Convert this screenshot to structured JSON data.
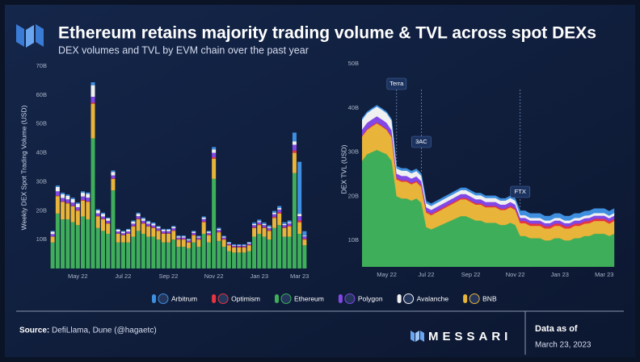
{
  "header": {
    "title": "Ethereum retains majority trading volume & TVL across spot DEXs",
    "subtitle": "DEX volumes and TVL by EVM chain over the past year"
  },
  "chart_data": [
    {
      "type": "stacked-bar",
      "ylabel": "Weekly DEX Spot Trading Volume (USD)",
      "categories": [
        null,
        null,
        null,
        null,
        null,
        "May 22",
        null,
        null,
        null,
        null,
        null,
        null,
        null,
        null,
        "Jul 22",
        null,
        null,
        null,
        null,
        null,
        null,
        null,
        null,
        "Sep 22",
        null,
        null,
        null,
        null,
        null,
        null,
        null,
        null,
        "Nov 22",
        null,
        null,
        null,
        null,
        null,
        null,
        null,
        null,
        "Jan 23",
        null,
        null,
        null,
        null,
        null,
        null,
        null,
        "Mar 23",
        null
      ],
      "ylim": [
        0,
        70
      ],
      "yticks": [
        {
          "value": 10,
          "label": "10B"
        },
        {
          "value": 20,
          "label": "20B"
        },
        {
          "value": 30,
          "label": "30B"
        },
        {
          "value": 40,
          "label": "40B"
        },
        {
          "value": 50,
          "label": "50B"
        },
        {
          "value": 60,
          "label": "60B"
        },
        {
          "value": 70,
          "label": "70B"
        }
      ],
      "grid": false,
      "series": [
        {
          "name": "Ethereum",
          "color": "#3fae5a",
          "values": [
            9,
            19,
            17,
            17,
            16,
            15,
            18,
            17,
            45,
            14,
            13,
            12,
            27,
            9,
            9,
            9,
            11,
            13,
            12,
            11,
            11,
            10,
            9,
            9,
            10,
            7.5,
            7.5,
            7,
            9,
            7.5,
            12,
            9,
            31,
            9.5,
            7.5,
            6,
            5.5,
            5.5,
            5.5,
            6,
            11,
            12,
            11,
            10,
            14,
            15,
            11,
            11,
            33,
            12,
            8
          ]
        },
        {
          "name": "BNB",
          "color": "#e8b43a",
          "values": [
            2,
            6,
            6,
            5.5,
            5.5,
            5,
            5.5,
            6,
            12,
            4,
            4,
            3.5,
            4,
            3,
            2.5,
            3,
            3.5,
            4,
            3.5,
            3.5,
            3,
            3,
            3,
            3,
            3,
            2.5,
            2.5,
            2,
            2.5,
            2.5,
            4,
            2.5,
            7,
            3,
            2.5,
            2,
            1.8,
            1.8,
            1.8,
            2,
            3,
            3,
            3,
            3,
            3.5,
            4,
            3,
            3.5,
            7,
            4,
            2
          ]
        },
        {
          "name": "Optimism",
          "color": "#e8343f",
          "values": [
            0.1,
            0.2,
            0.2,
            0.2,
            0.2,
            0.2,
            0.2,
            0.2,
            0.4,
            0.2,
            0.2,
            0.2,
            0.2,
            0.1,
            0.1,
            0.1,
            0.2,
            0.2,
            0.2,
            0.2,
            0.2,
            0.2,
            0.2,
            0.2,
            0.2,
            0.2,
            0.2,
            0.2,
            0.2,
            0.2,
            0.3,
            0.2,
            0.5,
            0.2,
            0.2,
            0.2,
            0.2,
            0.2,
            0.2,
            0.2,
            0.3,
            0.3,
            0.3,
            0.3,
            0.4,
            0.4,
            0.3,
            0.3,
            0.8,
            0.6,
            0.3
          ]
        },
        {
          "name": "Polygon",
          "color": "#8247e5",
          "values": [
            0.8,
            1.5,
            1.2,
            1.2,
            1.1,
            1,
            1.2,
            1.3,
            2,
            0.9,
            0.8,
            0.8,
            1,
            0.7,
            0.6,
            0.7,
            0.8,
            0.9,
            0.8,
            0.8,
            0.7,
            0.7,
            0.7,
            0.7,
            0.7,
            0.5,
            0.5,
            0.5,
            0.6,
            0.5,
            0.8,
            0.6,
            1.5,
            0.6,
            0.5,
            0.4,
            0.4,
            0.4,
            0.4,
            0.4,
            0.7,
            0.7,
            0.7,
            0.7,
            0.9,
            1,
            0.7,
            0.8,
            2,
            1.5,
            0.8
          ]
        },
        {
          "name": "Avalanche",
          "color": "#f0f0f0",
          "values": [
            0.8,
            1.5,
            1.3,
            1.2,
            1.2,
            1.2,
            1.3,
            1.3,
            4,
            1,
            0.9,
            0.8,
            1.2,
            0.6,
            0.5,
            0.6,
            0.7,
            0.8,
            0.7,
            0.6,
            0.6,
            0.5,
            0.5,
            0.5,
            0.5,
            0.4,
            0.4,
            0.3,
            0.4,
            0.3,
            0.5,
            0.4,
            1.2,
            0.4,
            0.3,
            0.3,
            0.2,
            0.2,
            0.2,
            0.3,
            0.4,
            0.4,
            0.4,
            0.4,
            0.5,
            0.5,
            0.4,
            0.4,
            1.2,
            0.8,
            0.3
          ]
        },
        {
          "name": "Arbitrum",
          "color": "#3f8fe0",
          "values": [
            0.3,
            0.5,
            0.5,
            0.5,
            0.5,
            0.4,
            0.5,
            0.5,
            1,
            0.4,
            0.4,
            0.3,
            0.5,
            0.3,
            0.3,
            0.3,
            0.4,
            0.4,
            0.4,
            0.4,
            0.4,
            0.3,
            0.3,
            0.3,
            0.3,
            0.3,
            0.3,
            0.3,
            0.3,
            0.3,
            0.4,
            0.3,
            0.8,
            0.4,
            0.3,
            0.3,
            0.3,
            0.3,
            0.3,
            0.3,
            0.5,
            0.5,
            0.5,
            0.5,
            0.6,
            0.7,
            0.6,
            0.6,
            3,
            18,
            1.5
          ]
        }
      ]
    },
    {
      "type": "stacked-area",
      "ylabel": "DEX  TVL (USD)",
      "categories": [
        null,
        null,
        null,
        null,
        null,
        "May 22",
        null,
        null,
        null,
        null,
        null,
        null,
        null,
        "Jul 22",
        null,
        null,
        null,
        null,
        null,
        null,
        null,
        null,
        "Sep 22",
        null,
        null,
        null,
        null,
        null,
        null,
        null,
        null,
        "Nov 22",
        null,
        null,
        null,
        null,
        null,
        null,
        null,
        null,
        "Jan 23",
        null,
        null,
        null,
        null,
        null,
        null,
        null,
        null,
        "Mar 23",
        null,
        null
      ],
      "ylim": [
        4,
        50
      ],
      "yticks": [
        {
          "value": 10,
          "label": "10B"
        },
        {
          "value": 20,
          "label": "20B"
        },
        {
          "value": 30,
          "label": "30B"
        },
        {
          "value": 40,
          "label": "40B"
        },
        {
          "value": 50,
          "label": "50B"
        }
      ],
      "grid": false,
      "annotations": [
        {
          "text": "Terra"
        },
        {
          "text": "3AC"
        },
        {
          "text": "FTX"
        }
      ],
      "series": [
        {
          "name": "Ethereum",
          "color": "#3fae5a",
          "values": [
            28,
            29.5,
            30,
            30.5,
            30,
            29.5,
            28,
            20,
            19.5,
            19.5,
            19,
            19.5,
            18.5,
            13,
            12.5,
            13,
            13.5,
            14,
            14.5,
            15,
            15.5,
            15.5,
            15,
            14.5,
            14.5,
            14,
            14,
            14,
            13.5,
            13.5,
            14,
            13.5,
            11,
            11,
            10.5,
            10.5,
            10.5,
            10,
            10,
            10.5,
            10.5,
            10,
            10,
            10.5,
            10.5,
            11,
            11,
            11.5,
            11.5,
            11.5,
            11,
            11.5
          ]
        },
        {
          "name": "BNB",
          "color": "#e8b43a",
          "values": [
            5.5,
            5.5,
            5.8,
            6,
            5.8,
            5.5,
            5.3,
            3.8,
            3.8,
            3.8,
            3.7,
            3.7,
            3.6,
            3.3,
            3.2,
            3.3,
            3.4,
            3.5,
            3.6,
            3.7,
            3.8,
            3.8,
            3.7,
            3.6,
            3.6,
            3.5,
            3.5,
            3.5,
            3.4,
            3.4,
            3.5,
            3.4,
            2.9,
            2.9,
            2.8,
            2.8,
            2.8,
            2.7,
            2.7,
            2.8,
            2.8,
            2.7,
            2.7,
            2.8,
            2.8,
            2.8,
            2.9,
            2.9,
            2.9,
            2.9,
            2.8,
            2.9
          ]
        },
        {
          "name": "Optimism",
          "color": "#e8343f",
          "values": [
            0.2,
            0.2,
            0.2,
            0.2,
            0.2,
            0.2,
            0.2,
            0.3,
            0.3,
            0.3,
            0.3,
            0.3,
            0.3,
            0.3,
            0.3,
            0.3,
            0.3,
            0.3,
            0.3,
            0.3,
            0.3,
            0.3,
            0.3,
            0.3,
            0.3,
            0.3,
            0.3,
            0.3,
            0.3,
            0.3,
            0.3,
            0.3,
            0.5,
            0.5,
            0.5,
            0.5,
            0.5,
            0.5,
            0.5,
            0.5,
            0.5,
            0.5,
            0.5,
            0.5,
            0.5,
            0.5,
            0.5,
            0.5,
            0.5,
            0.5,
            0.5,
            0.5
          ]
        },
        {
          "name": "Polygon",
          "color": "#8247e5",
          "values": [
            1.4,
            1.4,
            1.4,
            1.4,
            1.4,
            1.4,
            1.4,
            1,
            1,
            1,
            1,
            1,
            1,
            0.9,
            0.9,
            0.9,
            0.9,
            0.9,
            0.9,
            0.9,
            0.9,
            0.9,
            0.9,
            0.9,
            0.9,
            0.9,
            0.9,
            0.9,
            0.9,
            0.9,
            0.9,
            0.9,
            0.7,
            0.7,
            0.7,
            0.7,
            0.7,
            0.7,
            0.7,
            0.7,
            0.7,
            0.7,
            0.7,
            0.7,
            0.7,
            0.7,
            0.7,
            0.7,
            0.7,
            0.7,
            0.7,
            0.7
          ]
        },
        {
          "name": "Avalanche",
          "color": "#f0f0f0",
          "values": [
            2.2,
            2.2,
            2.2,
            2.2,
            2.2,
            2.2,
            2.2,
            1.2,
            1.2,
            1.2,
            1.2,
            1.2,
            1.2,
            0.9,
            0.9,
            0.9,
            0.9,
            0.9,
            0.9,
            0.9,
            0.9,
            0.9,
            0.9,
            0.9,
            0.9,
            0.9,
            0.9,
            0.9,
            0.9,
            0.9,
            0.9,
            0.9,
            0.6,
            0.6,
            0.6,
            0.6,
            0.6,
            0.6,
            0.6,
            0.6,
            0.6,
            0.6,
            0.6,
            0.6,
            0.6,
            0.6,
            0.6,
            0.6,
            0.6,
            0.6,
            0.6,
            0.6
          ]
        },
        {
          "name": "Arbitrum",
          "color": "#3f8fe0",
          "values": [
            0.3,
            0.3,
            0.3,
            0.3,
            0.3,
            0.3,
            0.3,
            0.5,
            0.5,
            0.5,
            0.5,
            0.5,
            0.5,
            0.5,
            0.5,
            0.5,
            0.5,
            0.5,
            0.5,
            0.5,
            0.5,
            0.5,
            0.5,
            0.5,
            0.5,
            0.5,
            0.5,
            0.5,
            0.5,
            0.5,
            0.5,
            0.5,
            1,
            1,
            1,
            1,
            1,
            1,
            1,
            1,
            1,
            1,
            1,
            1,
            1,
            1,
            1,
            1,
            1,
            1,
            1,
            1
          ]
        }
      ]
    }
  ],
  "footer": {
    "source_label": "Source:",
    "source": "DefiLlama, Dune (@hagaetc)",
    "brand": "MESSARI",
    "date_label": "Data as of",
    "date": "March 23, 2023"
  }
}
